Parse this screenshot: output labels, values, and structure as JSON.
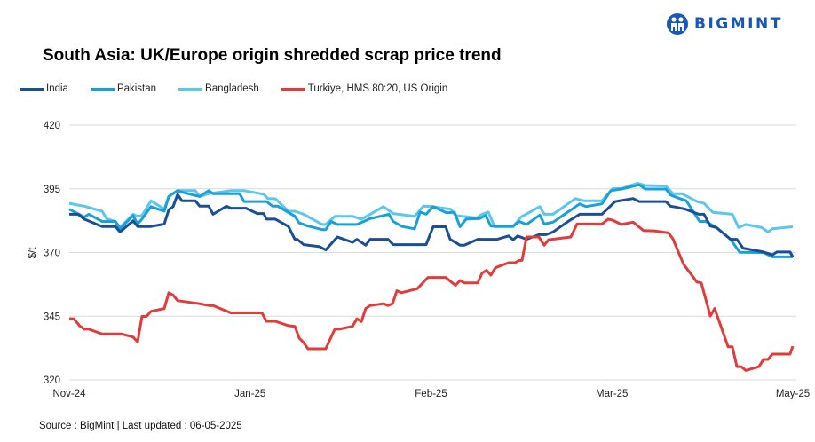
{
  "brand": {
    "name": "BIGMINT",
    "color": "#1657b8"
  },
  "footer": {
    "source": "Source : BigMint | Last updated : 06-05-2025"
  },
  "chart_data": {
    "type": "line",
    "title": "South Asia: UK/Europe origin shredded scrap price trend",
    "xlabel": "",
    "ylabel": "$/t",
    "ylim": [
      320,
      420
    ],
    "yticks": [
      320,
      345,
      370,
      395,
      420
    ],
    "xlim": [
      0,
      4
    ],
    "xticks": [
      {
        "x": 0,
        "label": "Nov-24"
      },
      {
        "x": 1,
        "label": "Jan-25"
      },
      {
        "x": 2,
        "label": "Feb-25"
      },
      {
        "x": 3,
        "label": "Mar-25"
      },
      {
        "x": 4,
        "label": "May-25"
      }
    ],
    "grid": "horizontal",
    "legend": "top-left",
    "series": [
      {
        "name": "India",
        "color": "#1a4f96",
        "points": [
          [
            0,
            385
          ],
          [
            0.049,
            385
          ],
          [
            0.083,
            383.1
          ],
          [
            0.182,
            380.2
          ],
          [
            0.255,
            380.2
          ],
          [
            0.28,
            378.1
          ],
          [
            0.353,
            382.4
          ],
          [
            0.378,
            380.2
          ],
          [
            0.452,
            380.2
          ],
          [
            0.525,
            381.2
          ],
          [
            0.55,
            386.8
          ],
          [
            0.574,
            388
          ],
          [
            0.599,
            392.8
          ],
          [
            0.623,
            390.3
          ],
          [
            0.697,
            390.3
          ],
          [
            0.721,
            388.2
          ],
          [
            0.771,
            388.2
          ],
          [
            0.795,
            385
          ],
          [
            0.869,
            388.2
          ],
          [
            0.893,
            387.4
          ],
          [
            0.977,
            387.4
          ],
          [
            1.04,
            385.3
          ],
          [
            1.075,
            385.3
          ],
          [
            1.09,
            383.1
          ],
          [
            1.139,
            383.1
          ],
          [
            1.212,
            380.2
          ],
          [
            1.247,
            375.2
          ],
          [
            1.261,
            375.2
          ],
          [
            1.296,
            373.1
          ],
          [
            1.384,
            372.3
          ],
          [
            1.418,
            371
          ],
          [
            1.443,
            373
          ],
          [
            1.482,
            376.1
          ],
          [
            1.566,
            374
          ],
          [
            1.59,
            375.2
          ],
          [
            1.639,
            372.9
          ],
          [
            1.664,
            375.2
          ],
          [
            1.762,
            375.2
          ],
          [
            1.791,
            373.1
          ],
          [
            1.973,
            373.1
          ],
          [
            2.012,
            380.1
          ],
          [
            2.081,
            380.1
          ],
          [
            2.106,
            375.2
          ],
          [
            2.16,
            372.9
          ],
          [
            2.184,
            372.9
          ],
          [
            2.258,
            375.2
          ],
          [
            2.366,
            375.2
          ],
          [
            2.429,
            376.5
          ],
          [
            2.454,
            375
          ],
          [
            2.479,
            376.5
          ],
          [
            2.528,
            375.2
          ],
          [
            2.596,
            377
          ],
          [
            2.636,
            377
          ],
          [
            2.675,
            378.1
          ],
          [
            2.758,
            382.2
          ],
          [
            2.822,
            385
          ],
          [
            2.945,
            385
          ],
          [
            3.018,
            390
          ],
          [
            3.117,
            391.2
          ],
          [
            3.151,
            390
          ],
          [
            3.298,
            390
          ],
          [
            3.323,
            388.2
          ],
          [
            3.362,
            387.7
          ],
          [
            3.406,
            387
          ],
          [
            3.48,
            385
          ],
          [
            3.509,
            385
          ],
          [
            3.544,
            380.4
          ],
          [
            3.578,
            379.8
          ],
          [
            3.656,
            375.2
          ],
          [
            3.691,
            375.2
          ],
          [
            3.725,
            371.7
          ],
          [
            3.838,
            370.2
          ],
          [
            3.887,
            369.1
          ],
          [
            3.912,
            370.2
          ],
          [
            3.985,
            370.2
          ],
          [
            4,
            368.3
          ]
        ]
      },
      {
        "name": "Pakistan",
        "color": "#1aa0d8",
        "points": [
          [
            0,
            387
          ],
          [
            0.083,
            383.9
          ],
          [
            0.108,
            385
          ],
          [
            0.182,
            382.2
          ],
          [
            0.255,
            382.2
          ],
          [
            0.28,
            379.3
          ],
          [
            0.353,
            384.5
          ],
          [
            0.378,
            381.2
          ],
          [
            0.402,
            383.1
          ],
          [
            0.452,
            388
          ],
          [
            0.525,
            386.2
          ],
          [
            0.55,
            392
          ],
          [
            0.599,
            394.3
          ],
          [
            0.633,
            393.5
          ],
          [
            0.721,
            392
          ],
          [
            0.771,
            394.3
          ],
          [
            0.795,
            393.1
          ],
          [
            0.942,
            393.1
          ],
          [
            0.967,
            390
          ],
          [
            1.09,
            390
          ],
          [
            1.124,
            388.2
          ],
          [
            1.153,
            388.2
          ],
          [
            1.247,
            384.2
          ],
          [
            1.271,
            381.6
          ],
          [
            1.32,
            380.4
          ],
          [
            1.399,
            379
          ],
          [
            1.418,
            379
          ],
          [
            1.448,
            382.2
          ],
          [
            1.482,
            381
          ],
          [
            1.59,
            381
          ],
          [
            1.664,
            383.3
          ],
          [
            1.767,
            385
          ],
          [
            1.791,
            382.2
          ],
          [
            1.84,
            380.2
          ],
          [
            1.909,
            379.3
          ],
          [
            1.939,
            385.9
          ],
          [
            1.973,
            385
          ],
          [
            2.012,
            388
          ],
          [
            2.086,
            385.6
          ],
          [
            2.13,
            385.8
          ],
          [
            2.16,
            380.1
          ],
          [
            2.194,
            383.1
          ],
          [
            2.268,
            383.3
          ],
          [
            2.302,
            384.5
          ],
          [
            2.331,
            380.4
          ],
          [
            2.454,
            380.4
          ],
          [
            2.488,
            382.2
          ],
          [
            2.528,
            381
          ],
          [
            2.601,
            384.7
          ],
          [
            2.626,
            381.2
          ],
          [
            2.675,
            381.9
          ],
          [
            2.822,
            389.1
          ],
          [
            2.856,
            388
          ],
          [
            2.945,
            389.1
          ],
          [
            2.994,
            394.3
          ],
          [
            3.053,
            394.9
          ],
          [
            3.151,
            396.6
          ],
          [
            3.185,
            394.9
          ],
          [
            3.298,
            394.9
          ],
          [
            3.323,
            392.6
          ],
          [
            3.362,
            391.5
          ],
          [
            3.411,
            390.3
          ],
          [
            3.485,
            382.2
          ],
          [
            3.519,
            382.2
          ],
          [
            3.578,
            379.8
          ],
          [
            3.656,
            375.2
          ],
          [
            3.706,
            370.1
          ],
          [
            3.838,
            370
          ],
          [
            3.887,
            368.3
          ],
          [
            4,
            368.3
          ]
        ]
      },
      {
        "name": "Bangladesh",
        "color": "#5cc6ee",
        "points": [
          [
            0,
            389.3
          ],
          [
            0.034,
            388.8
          ],
          [
            0.083,
            388.2
          ],
          [
            0.182,
            386.2
          ],
          [
            0.206,
            383.3
          ],
          [
            0.255,
            382.2
          ],
          [
            0.28,
            379.8
          ],
          [
            0.353,
            385
          ],
          [
            0.378,
            384.2
          ],
          [
            0.402,
            384.5
          ],
          [
            0.452,
            390.3
          ],
          [
            0.525,
            387
          ],
          [
            0.55,
            392
          ],
          [
            0.599,
            394.3
          ],
          [
            0.697,
            394.3
          ],
          [
            0.721,
            392
          ],
          [
            0.771,
            393.1
          ],
          [
            0.893,
            394.3
          ],
          [
            0.967,
            394.3
          ],
          [
            1.075,
            392.9
          ],
          [
            1.099,
            391.1
          ],
          [
            1.139,
            391.1
          ],
          [
            1.212,
            386.2
          ],
          [
            1.247,
            386.2
          ],
          [
            1.296,
            385
          ],
          [
            1.399,
            381
          ],
          [
            1.418,
            381
          ],
          [
            1.468,
            384.2
          ],
          [
            1.566,
            384.2
          ],
          [
            1.615,
            383.1
          ],
          [
            1.664,
            385
          ],
          [
            1.737,
            388
          ],
          [
            1.791,
            385.3
          ],
          [
            1.909,
            384.2
          ],
          [
            1.958,
            388.2
          ],
          [
            2.007,
            388
          ],
          [
            2.11,
            387
          ],
          [
            2.135,
            384.5
          ],
          [
            2.253,
            383.6
          ],
          [
            2.282,
            385
          ],
          [
            2.317,
            385.9
          ],
          [
            2.351,
            380.1
          ],
          [
            2.454,
            380.1
          ],
          [
            2.498,
            384
          ],
          [
            2.547,
            385.9
          ],
          [
            2.601,
            388
          ],
          [
            2.626,
            385
          ],
          [
            2.675,
            385
          ],
          [
            2.798,
            391.2
          ],
          [
            2.842,
            390.3
          ],
          [
            2.945,
            390.3
          ],
          [
            3.004,
            395.1
          ],
          [
            3.053,
            395.1
          ],
          [
            3.141,
            397.2
          ],
          [
            3.185,
            396.3
          ],
          [
            3.298,
            396.1
          ],
          [
            3.337,
            393.1
          ],
          [
            3.387,
            393.1
          ],
          [
            3.47,
            390
          ],
          [
            3.509,
            389.3
          ],
          [
            3.558,
            385.8
          ],
          [
            3.666,
            385
          ],
          [
            3.7,
            379.8
          ],
          [
            3.74,
            381
          ],
          [
            3.828,
            379.8
          ],
          [
            3.863,
            378.1
          ],
          [
            3.887,
            379.3
          ],
          [
            4,
            380.1
          ]
        ]
      },
      {
        "name": "Turkiye, HMS 80:20, US Origin",
        "color": "#e03c3a",
        "points": [
          [
            0,
            344
          ],
          [
            0.025,
            344
          ],
          [
            0.059,
            341.1
          ],
          [
            0.083,
            339.9
          ],
          [
            0.108,
            339.9
          ],
          [
            0.182,
            338
          ],
          [
            0.29,
            338
          ],
          [
            0.353,
            336.8
          ],
          [
            0.378,
            334.9
          ],
          [
            0.402,
            344.9
          ],
          [
            0.427,
            344.9
          ],
          [
            0.452,
            346.9
          ],
          [
            0.525,
            348
          ],
          [
            0.55,
            354.2
          ],
          [
            0.574,
            353.3
          ],
          [
            0.599,
            351.1
          ],
          [
            0.721,
            349.9
          ],
          [
            0.771,
            349.2
          ],
          [
            0.795,
            349.2
          ],
          [
            0.893,
            346.3
          ],
          [
            1.065,
            346.3
          ],
          [
            1.09,
            343
          ],
          [
            1.139,
            343
          ],
          [
            1.212,
            341.3
          ],
          [
            1.247,
            341
          ],
          [
            1.271,
            336.4
          ],
          [
            1.296,
            334.6
          ],
          [
            1.32,
            332.2
          ],
          [
            1.418,
            332.2
          ],
          [
            1.468,
            339.9
          ],
          [
            1.492,
            339.9
          ],
          [
            1.566,
            341
          ],
          [
            1.59,
            344
          ],
          [
            1.615,
            342.9
          ],
          [
            1.639,
            348
          ],
          [
            1.664,
            349.2
          ],
          [
            1.737,
            349.9
          ],
          [
            1.762,
            349.2
          ],
          [
            1.787,
            349.9
          ],
          [
            1.811,
            355
          ],
          [
            1.836,
            354.2
          ],
          [
            1.924,
            355.8
          ],
          [
            1.983,
            360.2
          ],
          [
            2.081,
            360.2
          ],
          [
            2.135,
            357.1
          ],
          [
            2.16,
            359
          ],
          [
            2.184,
            358.1
          ],
          [
            2.258,
            358.1
          ],
          [
            2.282,
            361.9
          ],
          [
            2.307,
            363
          ],
          [
            2.331,
            361.1
          ],
          [
            2.356,
            364
          ],
          [
            2.429,
            366
          ],
          [
            2.464,
            366
          ],
          [
            2.488,
            366.9
          ],
          [
            2.503,
            366.9
          ],
          [
            2.528,
            376.1
          ],
          [
            2.596,
            376.1
          ],
          [
            2.626,
            372.9
          ],
          [
            2.65,
            375
          ],
          [
            2.773,
            376.1
          ],
          [
            2.807,
            381.2
          ],
          [
            2.945,
            381.2
          ],
          [
            2.979,
            383.1
          ],
          [
            3.004,
            382.7
          ],
          [
            3.053,
            381
          ],
          [
            3.117,
            381.9
          ],
          [
            3.175,
            378.6
          ],
          [
            3.234,
            378.5
          ],
          [
            3.313,
            377.7
          ],
          [
            3.337,
            375.4
          ],
          [
            3.396,
            365.4
          ],
          [
            3.47,
            358.4
          ],
          [
            3.494,
            358.1
          ],
          [
            3.544,
            345.1
          ],
          [
            3.568,
            348
          ],
          [
            3.642,
            333
          ],
          [
            3.666,
            333
          ],
          [
            3.691,
            325.2
          ],
          [
            3.715,
            325.2
          ],
          [
            3.74,
            323.7
          ],
          [
            3.813,
            325.2
          ],
          [
            3.838,
            328
          ],
          [
            3.863,
            328
          ],
          [
            3.887,
            330.1
          ],
          [
            3.985,
            330.1
          ],
          [
            4,
            333.2
          ]
        ]
      }
    ]
  }
}
